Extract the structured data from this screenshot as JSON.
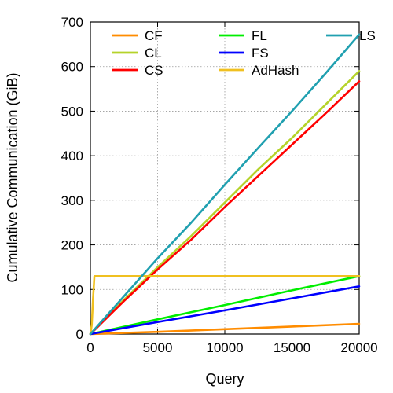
{
  "chart_data": {
    "type": "line",
    "title": "",
    "xlabel": "Query",
    "ylabel": "Cumulative Communication (GiB)",
    "xlim": [
      0,
      20000
    ],
    "ylim": [
      0,
      700
    ],
    "x_ticks": [
      0,
      5000,
      10000,
      15000,
      20000
    ],
    "y_ticks": [
      0,
      100,
      200,
      300,
      400,
      500,
      600,
      700
    ],
    "x_tick_labels": [
      "0",
      "5000",
      "10000",
      "15000",
      "20000"
    ],
    "y_tick_labels": [
      "0",
      "100",
      "200",
      "300",
      "400",
      "500",
      "600",
      "700"
    ],
    "grid": true,
    "legend_position": "top, inside plot, three columns",
    "series": [
      {
        "name": "CF",
        "color": "#ff8c00",
        "x": [
          0,
          5000,
          10000,
          15000,
          20000
        ],
        "y": [
          0,
          5,
          11,
          17,
          23
        ]
      },
      {
        "name": "CL",
        "color": "#b5d32a",
        "x": [
          0,
          2500,
          5000,
          7500,
          10000,
          12500,
          15000,
          17500,
          20000
        ],
        "y": [
          0,
          77,
          150,
          220,
          295,
          370,
          440,
          515,
          590
        ]
      },
      {
        "name": "CS",
        "color": "#ff0000",
        "x": [
          0,
          2500,
          5000,
          7500,
          10000,
          12500,
          15000,
          17500,
          20000
        ],
        "y": [
          0,
          74,
          145,
          212,
          285,
          355,
          425,
          495,
          567
        ]
      },
      {
        "name": "FL",
        "color": "#00ee00",
        "x": [
          0,
          5000,
          10000,
          15000,
          20000
        ],
        "y": [
          0,
          33,
          65,
          98,
          130
        ]
      },
      {
        "name": "FS",
        "color": "#0000ff",
        "x": [
          0,
          5000,
          10000,
          15000,
          20000
        ],
        "y": [
          0,
          27,
          53,
          80,
          107
        ]
      },
      {
        "name": "AdHash",
        "color": "#f0c020",
        "x": [
          0,
          100,
          200,
          300,
          20000
        ],
        "y": [
          0,
          20,
          80,
          130,
          130
        ]
      },
      {
        "name": "LS",
        "color": "#20a0b0",
        "x": [
          0,
          2500,
          5000,
          7500,
          10000,
          12500,
          15000,
          17500,
          20000
        ],
        "y": [
          0,
          85,
          170,
          250,
          335,
          418,
          500,
          585,
          672
        ]
      }
    ]
  }
}
